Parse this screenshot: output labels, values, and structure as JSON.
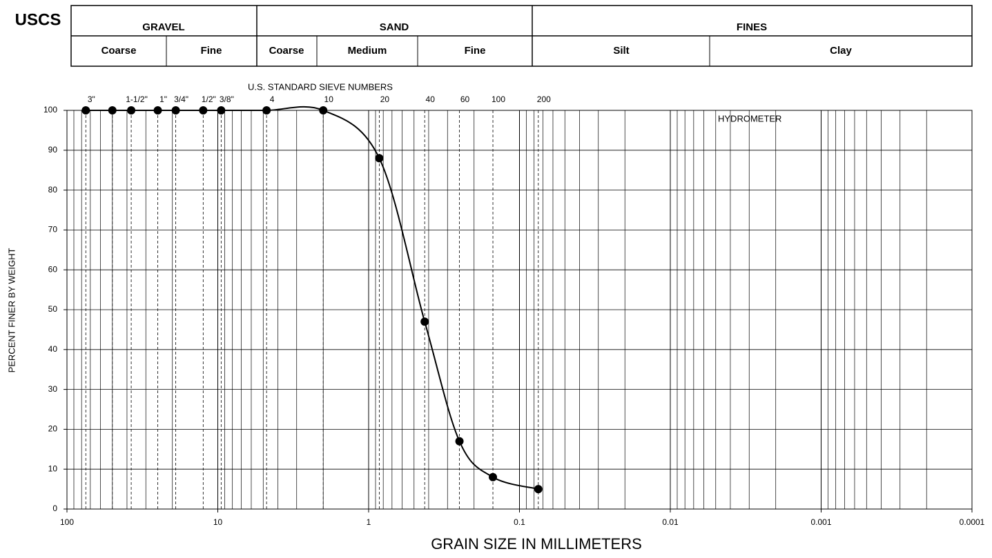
{
  "header": {
    "label": "USCS",
    "groups": [
      "GRAVEL",
      "SAND",
      "FINES"
    ],
    "subgroups": [
      "Coarse",
      "Fine",
      "Coarse",
      "Medium",
      "Fine",
      "Silt",
      "Clay"
    ]
  },
  "chart_data": {
    "type": "line",
    "sieve_title": "U.S. STANDARD SIEVE NUMBERS",
    "annotation": "HYDROMETER",
    "xlabel": "GRAIN SIZE IN MILLIMETERS",
    "ylabel": "PERCENT FINER BY WEIGHT",
    "x": [
      75,
      50,
      37.5,
      25,
      19,
      12.5,
      9.5,
      4.75,
      2,
      0.85,
      0.425,
      0.25,
      0.15,
      0.075
    ],
    "sieves": [
      "3\"",
      null,
      "1-1/2\"",
      "1\"",
      "3/4\"",
      "1/2\"",
      "3/8\"",
      "4",
      "10",
      "20",
      "40",
      "60",
      "100",
      "200"
    ],
    "series": [
      {
        "color": "#000000",
        "values": [
          100,
          100,
          100,
          100,
          100,
          100,
          100,
          100,
          100,
          88,
          47,
          17,
          8,
          5
        ]
      }
    ],
    "xscale": "log",
    "xlim": [
      100,
      0.0001
    ],
    "xticks": [
      100,
      10,
      1,
      0.1,
      0.01,
      0.001,
      0.0001
    ],
    "ylim": [
      0,
      100
    ],
    "yticks": [
      0,
      10,
      20,
      30,
      40,
      50,
      60,
      70,
      80,
      90,
      100
    ],
    "grid": true
  }
}
